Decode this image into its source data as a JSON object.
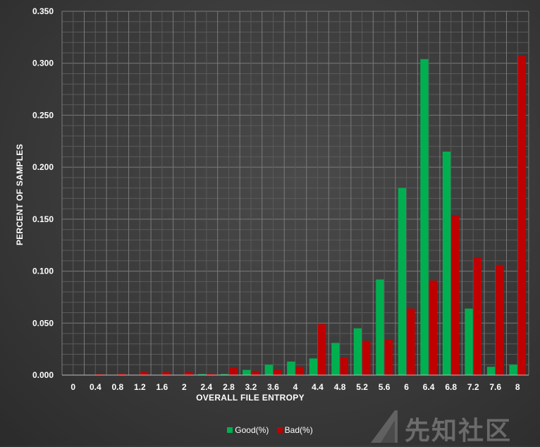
{
  "chart_data": {
    "type": "bar",
    "title": "",
    "xlabel": "OVERALL FILE ENTROPY",
    "ylabel": "PERCENT OF SAMPLES",
    "categories": [
      "0",
      "0.4",
      "0.8",
      "1.2",
      "1.6",
      "2",
      "2.4",
      "2.8",
      "3.2",
      "3.6",
      "4",
      "4.4",
      "4.8",
      "5.2",
      "5.6",
      "6",
      "6.4",
      "6.8",
      "7.2",
      "7.6",
      "8"
    ],
    "ylim": [
      0,
      0.35
    ],
    "yticks": [
      "0.000",
      "0.050",
      "0.100",
      "0.150",
      "0.200",
      "0.250",
      "0.300",
      "0.350"
    ],
    "grid": true,
    "legend_position": "bottom",
    "series": [
      {
        "name": "Good(%)",
        "color": "#00b050",
        "values": [
          0.0,
          0.0,
          0.0,
          0.0,
          0.0,
          0.0,
          0.001,
          0.001,
          0.005,
          0.01,
          0.013,
          0.016,
          0.031,
          0.045,
          0.092,
          0.18,
          0.304,
          0.215,
          0.064,
          0.008,
          0.01
        ]
      },
      {
        "name": "Bad(%)",
        "color": "#c00000",
        "values": [
          0.0,
          0.001,
          0.002,
          0.003,
          0.003,
          0.003,
          0.002,
          0.007,
          0.004,
          0.005,
          0.008,
          0.049,
          0.017,
          0.033,
          0.034,
          0.064,
          0.091,
          0.154,
          0.113,
          0.106,
          0.307
        ]
      }
    ]
  },
  "watermark": {
    "text": "先知社区",
    "logo": "triangle-logo-icon"
  }
}
